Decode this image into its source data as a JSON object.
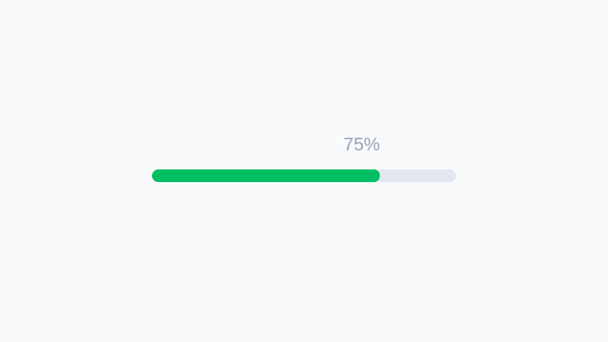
{
  "progress": {
    "value": 75,
    "label": "75%",
    "fill_color": "#00bf63",
    "track_color": "#e2e8f0",
    "label_color": "#94a3b8"
  }
}
